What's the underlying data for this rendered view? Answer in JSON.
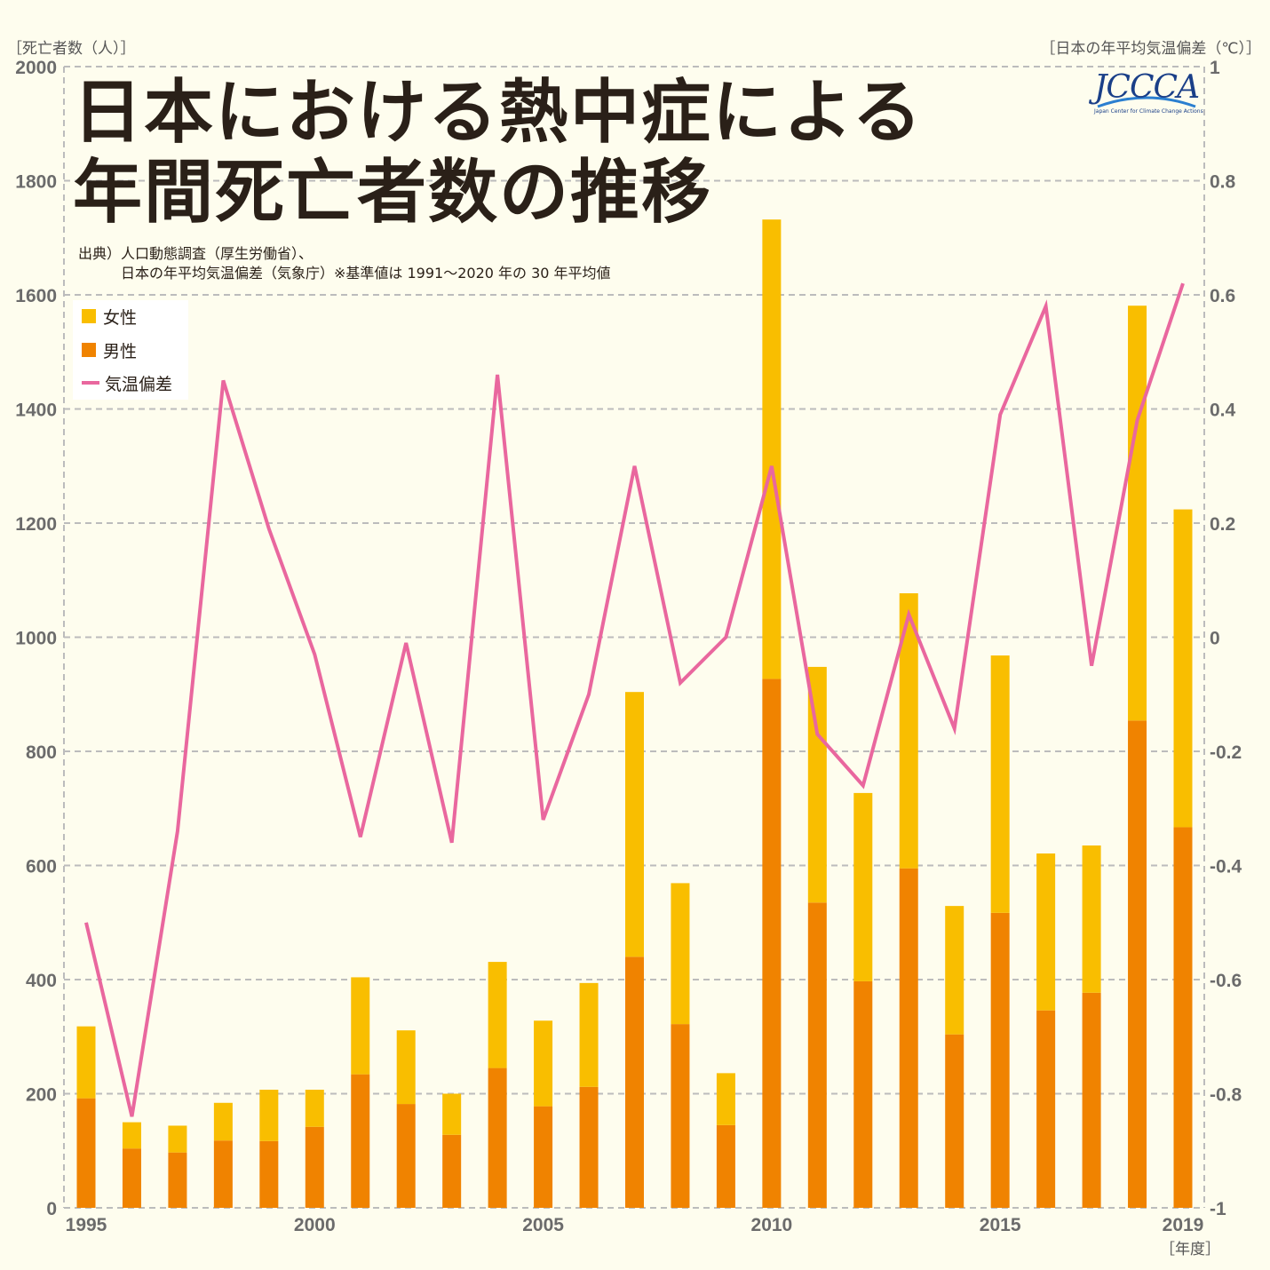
{
  "title_line1": "日本における熱中症による",
  "title_line2": "年間死亡者数の推移",
  "source_line1": "出典）人口動態調査（厚生労働省）、",
  "source_line2": "日本の年平均気温偏差（気象庁）※基準値は 1991～2020 年の 30 年平均値",
  "left_axis_unit": "［死亡者数（人）］",
  "right_axis_unit": "［日本の年平均気温偏差（℃）］",
  "x_axis_unit": "［年度］",
  "logo": {
    "text": "JCCCA",
    "subtitle": "Japan Center for Climate Change Actions"
  },
  "legend": [
    {
      "label": "女性",
      "color": "#f9be00"
    },
    {
      "label": "男性",
      "color": "#f08300"
    },
    {
      "label": "気温偏差",
      "color": "#e9679e"
    }
  ],
  "chart_data": {
    "type": "bar",
    "x": [
      1995,
      1996,
      1997,
      1998,
      1999,
      2000,
      2001,
      2002,
      2003,
      2004,
      2005,
      2006,
      2007,
      2008,
      2009,
      2010,
      2011,
      2012,
      2013,
      2014,
      2015,
      2016,
      2017,
      2018,
      2019
    ],
    "x_tick_labels": [
      "1995",
      "2000",
      "2005",
      "2010",
      "2015",
      "2019"
    ],
    "series": [
      {
        "name": "男性",
        "type": "bar",
        "stack": "deaths",
        "color": "#f08300",
        "axis": "left",
        "values": [
          192,
          104,
          97,
          118,
          117,
          142,
          234,
          182,
          128,
          245,
          178,
          212,
          440,
          322,
          145,
          927,
          535,
          397,
          595,
          304,
          517,
          346,
          377,
          854,
          667
        ]
      },
      {
        "name": "女性",
        "type": "bar",
        "stack": "deaths",
        "color": "#f9be00",
        "axis": "left",
        "values": [
          126,
          46,
          47,
          66,
          90,
          65,
          170,
          129,
          72,
          186,
          150,
          182,
          464,
          247,
          91,
          805,
          413,
          330,
          482,
          225,
          451,
          275,
          258,
          727,
          557
        ]
      },
      {
        "name": "気温偏差",
        "type": "line",
        "color": "#e9679e",
        "axis": "right",
        "values": [
          -0.5,
          -0.84,
          -0.34,
          0.45,
          0.19,
          -0.03,
          -0.35,
          -0.01,
          -0.36,
          0.46,
          -0.32,
          -0.1,
          0.3,
          -0.08,
          0.0,
          0.3,
          -0.17,
          -0.26,
          0.04,
          -0.16,
          0.39,
          0.58,
          -0.05,
          0.38,
          0.62
        ]
      }
    ],
    "left_axis": {
      "min": 0,
      "max": 2000,
      "ticks": [
        0,
        200,
        400,
        600,
        800,
        1000,
        1200,
        1400,
        1600,
        1800,
        2000
      ]
    },
    "right_axis": {
      "min": -1,
      "max": 1,
      "ticks": [
        -1,
        -0.8,
        -0.6,
        -0.4,
        -0.2,
        0,
        0.2,
        0.4,
        0.6,
        0.8,
        1
      ]
    },
    "grid": true,
    "legend_position": "top-left"
  }
}
